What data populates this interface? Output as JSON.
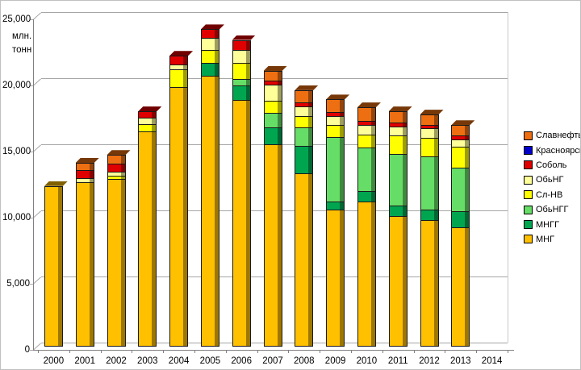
{
  "chart_data": {
    "type": "bar",
    "stacked": true,
    "grid": true,
    "legend_position": "right",
    "unit_line1": "млн.",
    "unit_line2": "тонн",
    "ylim": [
      0,
      25000
    ],
    "yticks": [
      {
        "label": "25,000",
        "value": 25000
      },
      {
        "label": "20,000",
        "value": 20000
      },
      {
        "label": "15,000",
        "value": 15000
      },
      {
        "label": "10,000",
        "value": 10000
      },
      {
        "label": "5,000",
        "value": 5000
      },
      {
        "label": "0",
        "value": 0
      }
    ],
    "categories": [
      "2000",
      "2001",
      "2002",
      "2003",
      "2004",
      "2005",
      "2006",
      "2007",
      "2008",
      "2009",
      "2010",
      "2011",
      "2012",
      "2013",
      "2014"
    ],
    "series": [
      {
        "name": "МНГ",
        "color": "#FFC000",
        "values": [
          12150,
          12500,
          12700,
          16300,
          19700,
          20500,
          18700,
          15350,
          13100,
          10400,
          11000,
          9900,
          9550,
          9050,
          0
        ]
      },
      {
        "name": "МНГГ",
        "color": "#00A550",
        "values": [
          0,
          0,
          0,
          0,
          0,
          1000,
          1100,
          1300,
          2100,
          600,
          800,
          800,
          800,
          1200,
          0
        ]
      },
      {
        "name": "ОбьНГГ",
        "color": "#66DD66",
        "values": [
          0,
          0,
          0,
          0,
          0,
          0,
          500,
          1100,
          1400,
          4900,
          3300,
          3900,
          4100,
          3300,
          0
        ]
      },
      {
        "name": "Сл-НВ",
        "color": "#FFFF00",
        "values": [
          0,
          0,
          300,
          600,
          1300,
          1000,
          1200,
          900,
          900,
          900,
          1000,
          1400,
          1400,
          1600,
          0
        ]
      },
      {
        "name": "ОбьНГ",
        "color": "#FFFF99",
        "values": [
          0,
          300,
          300,
          500,
          400,
          900,
          1000,
          1200,
          700,
          700,
          700,
          700,
          700,
          600,
          0
        ]
      },
      {
        "name": "Соболь",
        "color": "#E00000",
        "values": [
          0,
          600,
          600,
          400,
          600,
          600,
          700,
          300,
          300,
          300,
          300,
          300,
          300,
          300,
          0
        ]
      },
      {
        "name": "КрасноярскНГ",
        "color": "#0000CD",
        "values": [
          0,
          0,
          0,
          0,
          0,
          0,
          0,
          0,
          0,
          0,
          0,
          0,
          0,
          0,
          0
        ]
      },
      {
        "name": "Славнефть",
        "color": "#EE6F11",
        "values": [
          0,
          500,
          600,
          0,
          0,
          0,
          0,
          700,
          900,
          900,
          1000,
          800,
          700,
          700,
          0
        ]
      }
    ],
    "legend_order": [
      "Славнефть",
      "КрасноярскНГ",
      "Соболь",
      "ОбьНГ",
      "Сл-НВ",
      "ОбьНГГ",
      "МНГГ",
      "МНГ"
    ]
  }
}
